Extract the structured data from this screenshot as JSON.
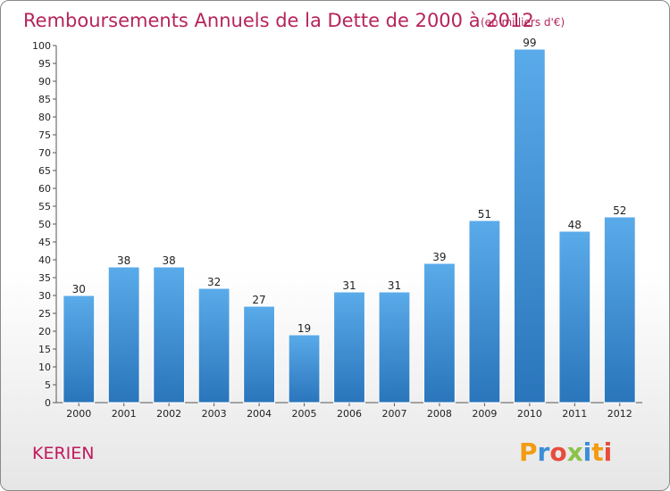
{
  "chart_data": {
    "type": "bar",
    "title": "Remboursements Annuels de la Dette de 2000 à 2012",
    "subtitle": "(en milliers d'€)",
    "categories": [
      "2000",
      "2001",
      "2002",
      "2003",
      "2004",
      "2005",
      "2006",
      "2007",
      "2008",
      "2009",
      "2010",
      "2011",
      "2012"
    ],
    "values": [
      30,
      38,
      38,
      32,
      27,
      19,
      31,
      31,
      39,
      51,
      99,
      48,
      52
    ],
    "ylim": [
      0,
      100
    ],
    "ytick_step": 5,
    "grid": false,
    "bar_color": "#3d8fd6",
    "legend": "none"
  },
  "commune": "KERIEN",
  "logo": {
    "letters": [
      "P",
      "r",
      "o",
      "x",
      "i",
      "t",
      "i"
    ],
    "colors": [
      "#f39c12",
      "#3b8ed8",
      "#e74c3c",
      "#8bc34a",
      "#3b8ed8",
      "#f39c12",
      "#e74c3c"
    ]
  }
}
